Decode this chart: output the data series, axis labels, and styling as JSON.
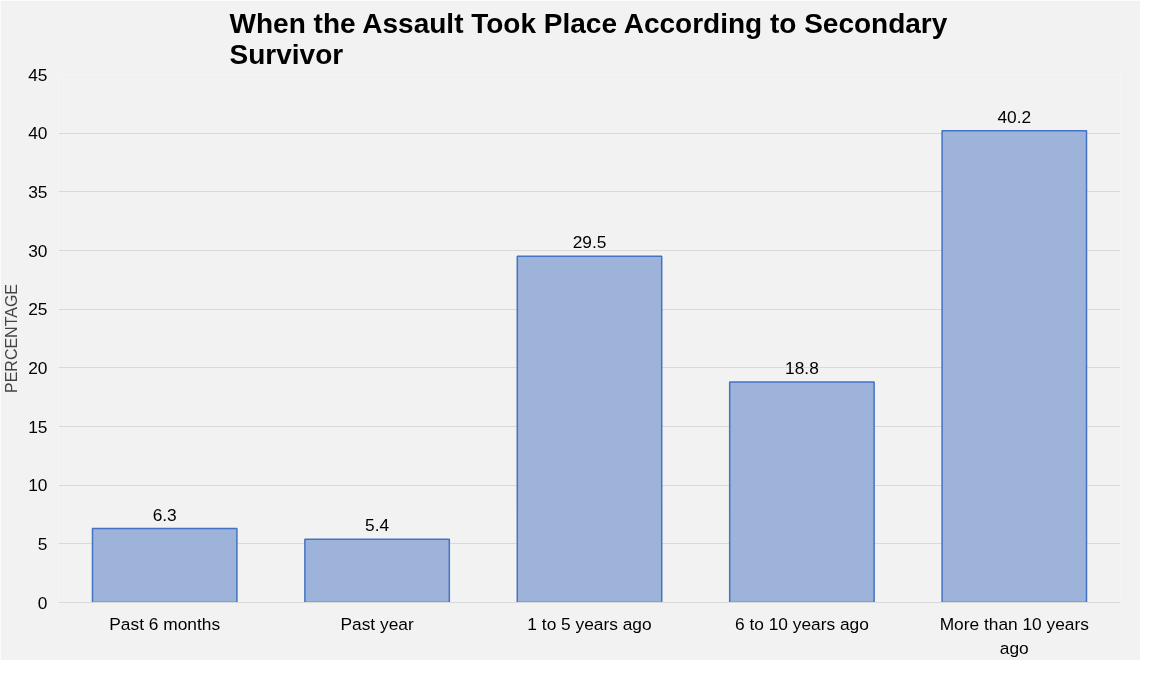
{
  "chart_data": {
    "type": "bar",
    "title": "When the Assault Took Place According to Secondary Survivor",
    "ylabel": "PERCENTAGE",
    "categories": [
      "Past 6 months",
      "Past year",
      "1 to 5 years ago",
      "6 to 10 years ago",
      "More than 10 years ago"
    ],
    "values": [
      6.3,
      5.4,
      29.5,
      18.8,
      40.2
    ],
    "color": "#9db3d9",
    "ylim": [
      0,
      45
    ],
    "yticks": [
      0,
      5,
      10,
      15,
      20,
      25,
      30,
      35,
      40,
      45
    ],
    "grid": "y",
    "data_labels": true
  }
}
